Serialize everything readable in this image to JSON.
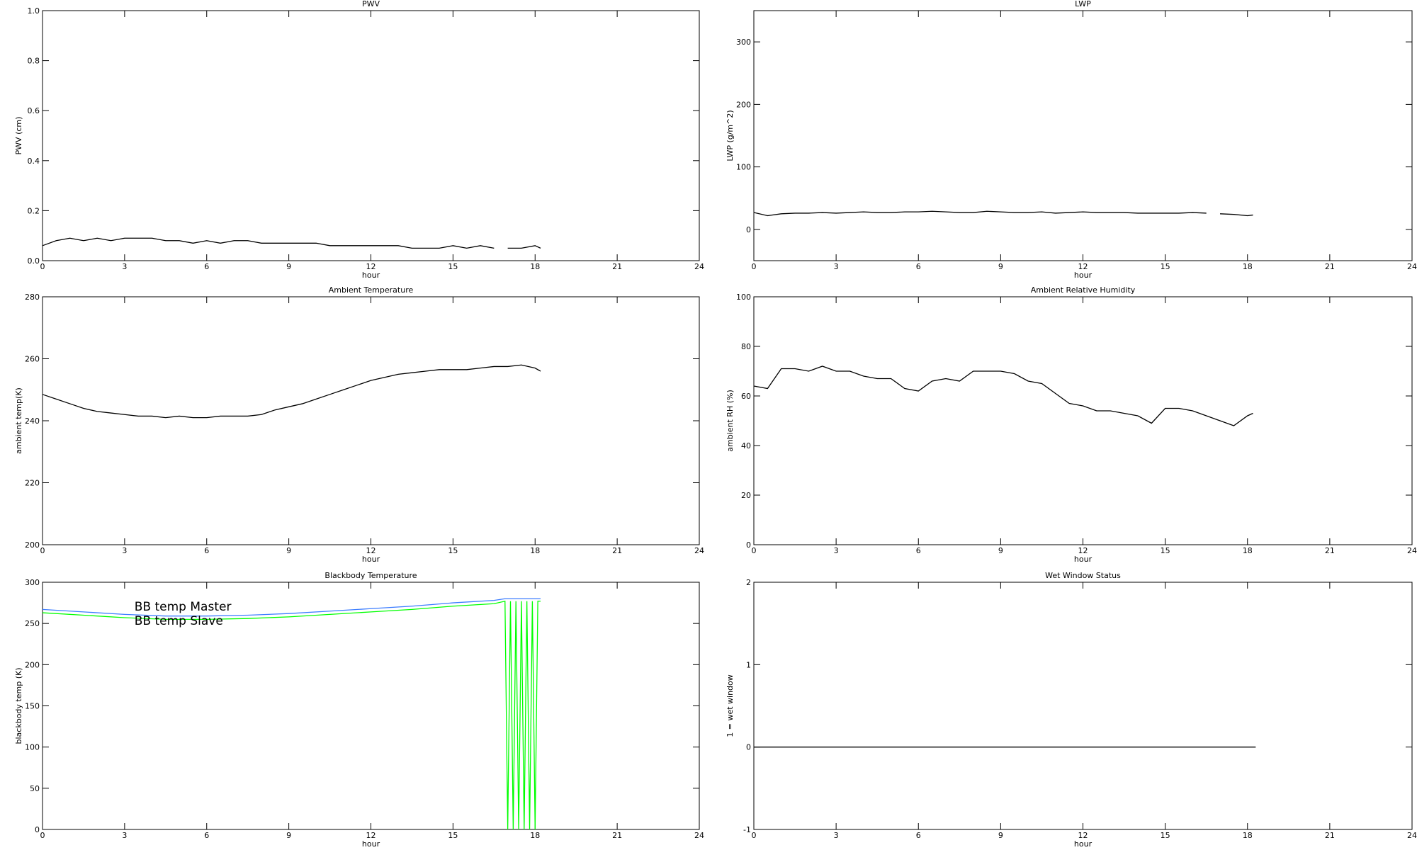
{
  "chart_data": [
    {
      "type": "line",
      "title": "PWV",
      "x_label": "hour",
      "y_label": "PWV (cm)",
      "xlim": [
        0,
        24
      ],
      "xticks": [
        0,
        3,
        6,
        9,
        12,
        15,
        18,
        21,
        24
      ],
      "ylim": [
        0,
        1
      ],
      "yticks": [
        {
          "value": 0,
          "label": "0.0"
        },
        0.2,
        0.4,
        0.6,
        0.8,
        {
          "value": 1,
          "label": "1.0"
        }
      ],
      "color": "#000000",
      "x": [
        0,
        0.5,
        1,
        1.5,
        2,
        2.5,
        3,
        3.5,
        4,
        4.5,
        5,
        5.5,
        6,
        6.5,
        7,
        7.5,
        8,
        8.5,
        9,
        9.5,
        10,
        10.5,
        11,
        11.5,
        12,
        12.5,
        13,
        13.5,
        14,
        14.5,
        15,
        15.5,
        16,
        16.5,
        16.75,
        17,
        17.5,
        18,
        18.2
      ],
      "values": [
        0.06,
        0.08,
        0.09,
        0.08,
        0.09,
        0.08,
        0.09,
        0.09,
        0.09,
        0.08,
        0.08,
        0.07,
        0.08,
        0.07,
        0.08,
        0.08,
        0.07,
        0.07,
        0.07,
        0.07,
        0.07,
        0.06,
        0.06,
        0.06,
        0.06,
        0.06,
        0.06,
        0.05,
        0.05,
        0.05,
        0.06,
        0.05,
        0.06,
        0.05,
        null,
        0.05,
        0.05,
        0.06,
        0.05
      ]
    },
    {
      "type": "line",
      "title": "LWP",
      "x_label": "hour",
      "y_label": "LWP (g/m^2)",
      "xlim": [
        0,
        24
      ],
      "xticks": [
        0,
        3,
        6,
        9,
        12,
        15,
        18,
        21,
        24
      ],
      "ylim": [
        -50,
        350
      ],
      "yticks": [
        0,
        100,
        200,
        300
      ],
      "color": "#000000",
      "x": [
        0,
        0.5,
        1,
        1.5,
        2,
        2.5,
        3,
        3.5,
        4,
        4.5,
        5,
        5.5,
        6,
        6.5,
        7,
        7.5,
        8,
        8.5,
        9,
        9.5,
        10,
        10.5,
        11,
        11.5,
        12,
        12.5,
        13,
        13.5,
        14,
        14.5,
        15,
        15.5,
        16,
        16.5,
        16.75,
        17,
        17.5,
        18,
        18.2
      ],
      "values": [
        27,
        22,
        25,
        26,
        26,
        27,
        26,
        27,
        28,
        27,
        27,
        28,
        28,
        29,
        28,
        27,
        27,
        29,
        28,
        27,
        27,
        28,
        26,
        27,
        28,
        27,
        27,
        27,
        26,
        26,
        26,
        26,
        27,
        26,
        null,
        25,
        24,
        22,
        23
      ]
    },
    {
      "type": "line",
      "title": "Ambient Temperature",
      "x_label": "hour",
      "y_label": "ambient temp(K)",
      "xlim": [
        0,
        24
      ],
      "xticks": [
        0,
        3,
        6,
        9,
        12,
        15,
        18,
        21,
        24
      ],
      "ylim": [
        200,
        280
      ],
      "yticks": [
        200,
        220,
        240,
        260,
        280
      ],
      "color": "#000000",
      "x": [
        0,
        0.5,
        1,
        1.5,
        2,
        2.5,
        3,
        3.5,
        4,
        4.5,
        5,
        5.5,
        6,
        6.5,
        7,
        7.5,
        8,
        8.5,
        9,
        9.5,
        10,
        10.5,
        11,
        11.5,
        12,
        12.5,
        13,
        13.5,
        14,
        14.5,
        15,
        15.5,
        16,
        16.5,
        17,
        17.5,
        18,
        18.2
      ],
      "values": [
        248.5,
        247,
        245.5,
        244,
        243,
        242.5,
        242,
        241.5,
        241.5,
        241,
        241.5,
        241,
        241,
        241.5,
        241.5,
        241.5,
        242,
        243.5,
        244.5,
        245.5,
        247,
        248.5,
        250,
        251.5,
        253,
        254,
        255,
        255.5,
        256,
        256.5,
        256.5,
        256.5,
        257,
        257.5,
        257.5,
        258,
        257,
        256
      ]
    },
    {
      "type": "line",
      "title": "Ambient Relative Humidity",
      "x_label": "hour",
      "y_label": "ambient RH (%)",
      "xlim": [
        0,
        24
      ],
      "xticks": [
        0,
        3,
        6,
        9,
        12,
        15,
        18,
        21,
        24
      ],
      "ylim": [
        0,
        100
      ],
      "yticks": [
        0,
        20,
        40,
        60,
        80,
        100
      ],
      "color": "#000000",
      "x": [
        0,
        0.5,
        1,
        1.5,
        2,
        2.5,
        3,
        3.5,
        4,
        4.5,
        5,
        5.5,
        6,
        6.5,
        7,
        7.5,
        8,
        8.5,
        9,
        9.5,
        10,
        10.5,
        11,
        11.5,
        12,
        12.5,
        13,
        13.5,
        14,
        14.5,
        15,
        15.5,
        16,
        16.5,
        17,
        17.5,
        18,
        18.2
      ],
      "values": [
        64,
        63,
        71,
        71,
        70,
        72,
        70,
        70,
        68,
        67,
        67,
        63,
        62,
        66,
        67,
        66,
        70,
        70,
        70,
        69,
        66,
        65,
        61,
        57,
        56,
        54,
        54,
        53,
        52,
        49,
        55,
        55,
        54,
        52,
        50,
        48,
        52,
        53
      ]
    },
    {
      "type": "line",
      "title": "Blackbody Temperature",
      "x_label": "hour",
      "y_label": "blackbody temp (K)",
      "xlim": [
        0,
        24
      ],
      "xticks": [
        0,
        3,
        6,
        9,
        12,
        15,
        18,
        21,
        24
      ],
      "ylim": [
        0,
        300
      ],
      "yticks": [
        0,
        50,
        100,
        150,
        200,
        250,
        300
      ],
      "legend": "upper left",
      "x": [
        0,
        1.5,
        3,
        4.5,
        6,
        7.5,
        9,
        10.5,
        12,
        13.5,
        15,
        16.5,
        16.9,
        17.0,
        17.1,
        17.2,
        17.3,
        17.4,
        17.5,
        17.6,
        17.7,
        17.8,
        17.9,
        18.0,
        18.1,
        18.2
      ],
      "series": [
        {
          "name": "BB temp Master",
          "color": "#3c7dff",
          "values": [
            267,
            264,
            261,
            259,
            259,
            260,
            262,
            265,
            268,
            271,
            275,
            278,
            280,
            280,
            280,
            280,
            280,
            280,
            280,
            280,
            280,
            280,
            280,
            280,
            280,
            280
          ]
        },
        {
          "name": "BB temp Slave",
          "color": "#00ff00",
          "values": [
            263,
            260,
            257,
            255,
            255,
            256,
            258,
            261,
            264,
            267,
            271,
            274,
            277,
            0,
            277,
            0,
            277,
            0,
            277,
            0,
            277,
            0,
            277,
            0,
            277,
            277
          ]
        }
      ]
    },
    {
      "type": "line",
      "title": "Wet Window Status",
      "x_label": "hour",
      "y_label": "1 = wet window",
      "xlim": [
        0,
        24
      ],
      "xticks": [
        0,
        3,
        6,
        9,
        12,
        15,
        18,
        21,
        24
      ],
      "ylim": [
        -1,
        2
      ],
      "yticks": [
        -1,
        0,
        1,
        2
      ],
      "color": "#000000",
      "x": [
        0,
        18.3
      ],
      "values": [
        0,
        0
      ]
    }
  ]
}
